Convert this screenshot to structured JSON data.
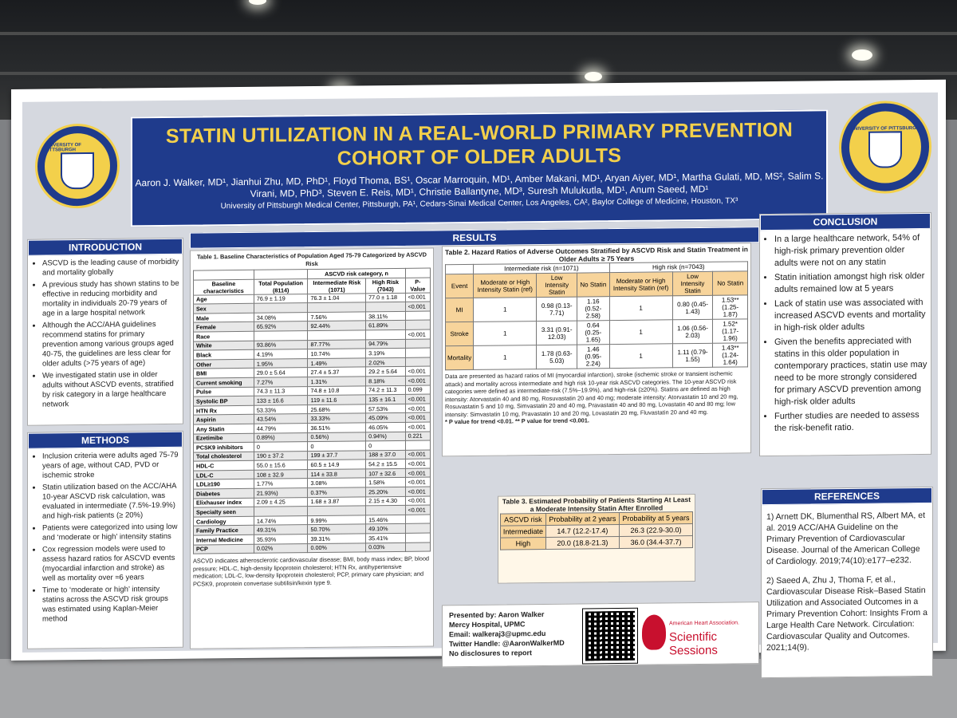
{
  "poster": {
    "title": "STATIN UTILIZATION IN A REAL-WORLD PRIMARY PREVENTION COHORT OF OLDER ADULTS",
    "authors": "Aaron J. Walker, MD¹, Jianhui Zhu, MD, PhD¹, Floyd Thoma, BS¹, Oscar Marroquin, MD¹, Amber Makani, MD¹, Aryan Aiyer, MD¹, Martha Gulati, MD, MS², Salim S. Virani, MD, PhD³, Steven E. Reis, MD¹, Christie Ballantyne, MD³, Suresh Mulukutla, MD¹, Anum Saeed, MD¹",
    "affiliations": "University of Pittsburgh Medical Center, Pittsburgh, PA¹, Cedars-Sinai Medical Center, Los Angeles, CA², Baylor College of Medicine, Houston, TX³",
    "logo_text": "UNIVERSITY OF PITTSBURGH"
  },
  "introduction": {
    "heading": "INTRODUCTION",
    "items": [
      "ASCVD is the leading cause of morbidity and mortality globally",
      "A previous study has shown statins to be effective in reducing morbidity and mortality in individuals 20-79 years of age in a large hospital network",
      "Although the ACC/AHA guidelines recommend statins for primary prevention among various groups aged 40-75, the guidelines are less clear for older adults (>75 years of age)",
      "We investigated statin use in older adults without ASCVD events, stratified by risk category in a large healthcare network"
    ]
  },
  "methods": {
    "heading": "METHODS",
    "items": [
      "Inclusion criteria were adults aged 75-79 years of age, without CAD, PVD or ischemic stroke",
      "Statin utilization based on the ACC/AHA 10-year ASCVD risk calculation, was evaluated in intermediate (7.5%-19.9%) and high-risk patients (≥ 20%)",
      "Patients were categorized into using low and ‘moderate or high’ intensity statins",
      "Cox regression models were used to assess hazard ratios for ASCVD events (myocardial infarction and stroke) as well as mortality over ≈6 years",
      "Time to ‘moderate or high’ intensity statins across the ASCVD risk groups was estimated using Kaplan-Meier method"
    ]
  },
  "results": {
    "heading": "RESULTS",
    "table1": {
      "caption": "Table 1. Baseline Characteristics of Population Aged 75-79 Categorized by ASCVD Risk",
      "group_header": "ASCVD risk category, n",
      "headers": [
        "Baseline characteristics",
        "Total Population (8114)",
        "Intermediate Risk (1071)",
        "High Risk (7043)",
        "P-Value"
      ],
      "rows": [
        [
          "Age",
          "76.9 ± 1.19",
          "76.3 ± 1.04",
          "77.0 ± 1.18",
          "<0.001"
        ],
        [
          "Sex",
          "",
          "",
          "",
          "<0.001"
        ],
        [
          "Male",
          "34.08%",
          "7.56%",
          "38.11%",
          ""
        ],
        [
          "Female",
          "65.92%",
          "92.44%",
          "61.89%",
          ""
        ],
        [
          "Race",
          "",
          "",
          "",
          "<0.001"
        ],
        [
          "White",
          "93.86%",
          "87.77%",
          "94.79%",
          ""
        ],
        [
          "Black",
          "4.19%",
          "10.74%",
          "3.19%",
          ""
        ],
        [
          "Other",
          "1.95%",
          "1.49%",
          "2.02%",
          ""
        ],
        [
          "BMI",
          "29.0 ± 5.64",
          "27.4 ± 5.37",
          "29.2 ± 5.64",
          "<0.001"
        ],
        [
          "Current smoking",
          "7.27%",
          "1.31%",
          "8.18%",
          "<0.001"
        ],
        [
          "Pulse",
          "74.3 ± 11.3",
          "74.8 ± 10.8",
          "74.2 ± 11.3",
          "0.099"
        ],
        [
          "Systolic BP",
          "133 ± 16.6",
          "119 ± 11.6",
          "135 ± 16.1",
          "<0.001"
        ],
        [
          "HTN Rx",
          "53.33%",
          "25.68%",
          "57.53%",
          "<0.001"
        ],
        [
          "Aspirin",
          "43.54%",
          "33.33%",
          "45.09%",
          "<0.001"
        ],
        [
          "Any Statin",
          "44.79%",
          "36.51%",
          "46.05%",
          "<0.001"
        ],
        [
          "Ezetimibe",
          "0.89%)",
          "0.56%)",
          "0.94%)",
          "0.221"
        ],
        [
          "PCSK9 inhibitors",
          "0",
          "0",
          "0",
          ""
        ],
        [
          "Total cholesterol",
          "190 ± 37.2",
          "199 ± 37.7",
          "188 ± 37.0",
          "<0.001"
        ],
        [
          "HDL-C",
          "55.0 ± 15.6",
          "60.5 ± 14.9",
          "54.2 ± 15.5",
          "<0.001"
        ],
        [
          "LDL-C",
          "108 ± 32.9",
          "114 ± 33.8",
          "107 ± 32.6",
          "<0.001"
        ],
        [
          "LDL≥190",
          "1.77%",
          "3.08%",
          "1.58%",
          "<0.001"
        ],
        [
          "Diabetes",
          "21.93%)",
          "0.37%",
          "25.20%",
          "<0.001"
        ],
        [
          "Elixhauser index",
          "2.09 ± 4.25",
          "1.68 ± 3.87",
          "2.15 ± 4.30",
          "<0.001"
        ],
        [
          "Specialty seen",
          "",
          "",
          "",
          "<0.001"
        ],
        [
          "Cardiology",
          "14.74%",
          "9.99%",
          "15.46%",
          ""
        ],
        [
          "Family Practice",
          "49.31%",
          "50.70%",
          "49.10%",
          ""
        ],
        [
          "Internal Medicine",
          "35.93%",
          "39.31%",
          "35.41%",
          ""
        ],
        [
          "PCP",
          "0.02%",
          "0.00%",
          "0.03%",
          ""
        ]
      ],
      "footnote": "ASCVD indicates atherosclerotic cardiovascular disease; BMI, body mass index; BP, blood pressure; HDL-C, high-density lipoprotein cholesterol; HTN Rx, antihypertensive medication; LDL-C, low-density lipoprotein cholesterol; PCP, primary care physician; and PCSK9, proprotein convertase subtilisin/kexin type 9."
    },
    "table2": {
      "caption": "Table 2. Hazard Ratios of Adverse Outcomes Stratified by ASCVD Risk and Statin Treatment in Older Adults ≥ 75 Years",
      "group_intermediate": "Intermediate risk (n=1071)",
      "group_high": "High risk (n=7043)",
      "headers": [
        "Event",
        "Moderate or High Intensity Statin (ref)",
        "Low Intensity Statin",
        "No Statin",
        "Moderate or High Intensity Statin (ref)",
        "Low Intensity Statin",
        "No Statin"
      ],
      "rows": [
        [
          "MI",
          "1",
          "0.98 (0.13-7.71)",
          "1.16 (0.52-2.58)",
          "1",
          "0.80 (0.45-1.43)",
          "1.53** (1.25-1.87)"
        ],
        [
          "Stroke",
          "1",
          "3.31 (0.91-12.03)",
          "0.64 (0.25-1.65)",
          "1",
          "1.06 (0.56-2.03)",
          "1.52* (1.17-1.96)"
        ],
        [
          "Mortality",
          "1",
          "1.78 (0.63-5.03)",
          "1.46 (0.95-2.24)",
          "1",
          "1.11 (0.79-1.55)",
          "1.43** (1.24-1.64)"
        ]
      ],
      "note": "Data are presented as hazard ratios of MI (myocardial infarction), stroke (ischemic stroke or transient ischemic attack) and mortality across intermediate and high risk 10-year risk ASCVD categories. The 10-year ASCVD risk categories were defined as intermediate-risk (7.5%–19.9%), and high-risk (≥20%). Statins are defined as high intensity: Atorvastatin 40 and 80 mg, Rosuvastatin 20 and 40 mg; moderate intensity: Atorvastatin 10 and 20 mg, Rosuvastatin 5 and 10 mg, Simvastatin 20 and 40 mg, Pravastatin 40 and 80 mg, Lovastatin 40 and 80 mg; low intensity: Simvastatin 10 mg, Pravastatin 10 and 20 mg, Lovastatin 20 mg, Fluvastatin 20 and 40 mg.",
      "pvalue_note": "* P value for trend <0.01. ** P value for trend <0.001."
    },
    "table3": {
      "caption": "Table 3. Estimated Probability of Patients Starting At Least a Moderate Intensity Statin After Enrolled",
      "headers": [
        "ASCVD risk",
        "Probability at 2 years",
        "Probability at 5 years"
      ],
      "rows": [
        [
          "Intermediate",
          "14.7 (12.2-17.4)",
          "26.3 (22.9-30.0)"
        ],
        [
          "High",
          "20.0 (18.8-21.3)",
          "36.0 (34.4-37.7)"
        ]
      ]
    },
    "presenter": {
      "lines": [
        "Presented by: Aaron Walker",
        "Mercy Hospital, UPMC",
        "Email: walkeraj3@upmc.edu",
        "Twitter Handle: @AaronWalkerMD",
        "No disclosures to report"
      ]
    },
    "sponsor": {
      "line1": "American Heart Association.",
      "line2": "Scientific Sessions"
    }
  },
  "conclusion": {
    "heading": "CONCLUSION",
    "items": [
      "In a large healthcare network, 54% of high-risk primary prevention older adults were not on any statin",
      "Statin initiation amongst high risk older adults remained low at 5 years",
      "Lack of statin use was associated with increased ASCVD events and mortality in high-risk older adults",
      "Given the benefits appreciated with statins in this older population in contemporary practices, statin use may need to be more strongly considered for primary ASCVD prevention among high-risk older adults",
      "Further studies are needed to assess the risk-benefit ratio."
    ]
  },
  "references": {
    "heading": "REFERENCES",
    "items": [
      "1) Arnett DK, Blumenthal RS, Albert MA, et al. 2019 ACC/AHA Guideline on the Primary Prevention of Cardiovascular Disease. Journal of the American College of Cardiology. 2019;74(10):e177–e232.",
      "2) Saeed A, Zhu J, Thoma F, et al., Cardiovascular Disease Risk–Based Statin Utilization and Associated Outcomes in a Primary Prevention Cohort: Insights From a Large Health Care Network. Circulation: Cardiovascular Quality and Outcomes. 2021;14(9)."
    ]
  },
  "colors": {
    "navy": "#1f3b8c",
    "gold": "#f3d04b",
    "peach": "#f7d49b",
    "red": "#c8102e"
  }
}
